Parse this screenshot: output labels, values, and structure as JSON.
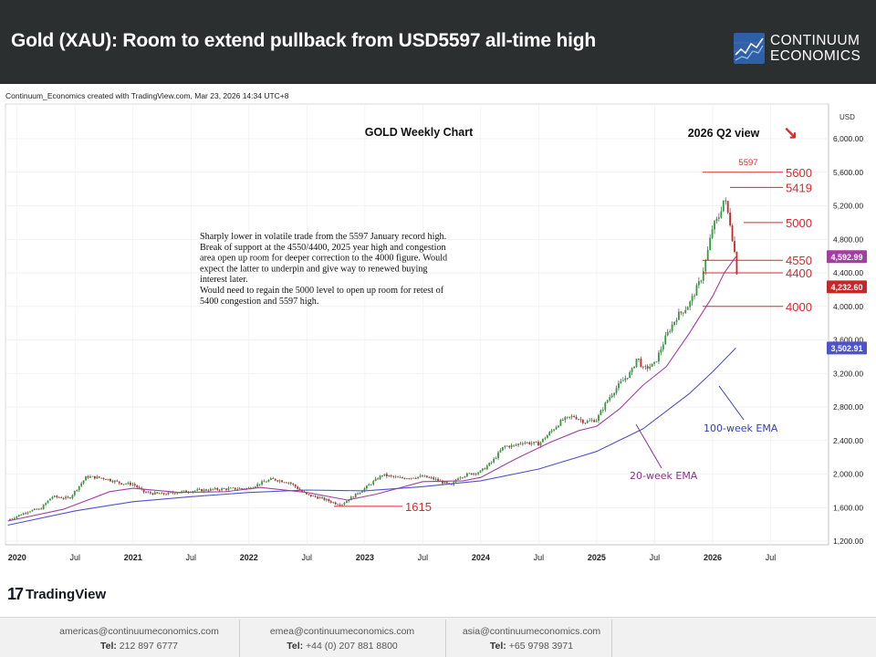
{
  "header": {
    "title": "Gold (XAU): Room to extend pullback from USD5597 all-time high",
    "logo_line1": "CONTINUUM",
    "logo_line2": "ECONOMICS"
  },
  "credit": "Continuum_Economics created with TradingView.com, Mar 23, 2026 14:34 UTC+8",
  "chart_data": {
    "type": "line",
    "title": "GOLD Weekly Chart",
    "subtitle": "2026 Q2 view",
    "currency": "USD",
    "ylim": [
      1200,
      6400
    ],
    "y_ticks": [
      "6,000.00",
      "5,600.00",
      "5,200.00",
      "4,800.00",
      "4,400.00",
      "4,000.00",
      "3,600.00",
      "3,200.00",
      "2,800.00",
      "2,400.00",
      "2,000.00",
      "1,600.00",
      "1,200.00"
    ],
    "x_ticks": [
      "2020",
      "Jul",
      "2021",
      "Jul",
      "2022",
      "Jul",
      "2023",
      "Jul",
      "2024",
      "Jul",
      "2025",
      "Jul",
      "2026",
      "Jul"
    ],
    "x_tick_pos": [
      0,
      0.5,
      1,
      1.5,
      2,
      2.5,
      3,
      3.5,
      4,
      4.5,
      5,
      5.5,
      6,
      6.5
    ],
    "x_range": [
      -0.1,
      7.0
    ],
    "price_series": {
      "name": "XAU weekly close (approx.)",
      "x": [
        -0.08,
        0.1,
        0.2,
        0.3,
        0.45,
        0.6,
        0.75,
        0.9,
        1.0,
        1.1,
        1.25,
        1.5,
        1.75,
        2.0,
        2.1,
        2.2,
        2.35,
        2.5,
        2.6,
        2.75,
        2.8,
        3.0,
        3.15,
        3.3,
        3.5,
        3.6,
        3.75,
        3.8,
        3.9,
        4.0,
        4.1,
        4.2,
        4.3,
        4.35,
        4.5,
        4.6,
        4.7,
        4.8,
        4.9,
        5.0,
        5.1,
        5.2,
        5.3,
        5.35,
        5.4,
        5.5,
        5.6,
        5.7,
        5.75,
        5.8,
        5.9,
        5.95,
        6.0,
        6.05,
        6.1,
        6.15,
        6.2,
        6.22
      ],
      "y": [
        1450,
        1560,
        1580,
        1730,
        1710,
        1970,
        1950,
        1890,
        1880,
        1780,
        1760,
        1800,
        1820,
        1830,
        1890,
        1940,
        1900,
        1750,
        1720,
        1650,
        1640,
        1830,
        1990,
        1950,
        1970,
        1940,
        1860,
        1960,
        2000,
        2030,
        2150,
        2330,
        2340,
        2380,
        2360,
        2500,
        2640,
        2690,
        2620,
        2650,
        2900,
        3080,
        3220,
        3400,
        3250,
        3310,
        3650,
        3900,
        3950,
        4030,
        4330,
        4600,
        4950,
        5050,
        5300,
        5000,
        4550,
        4232
      ]
    },
    "series": [
      {
        "name": "20-week EMA",
        "color": "#a33ea3",
        "last_value": "4,592.99",
        "x": [
          -0.08,
          0.4,
          0.8,
          1.0,
          1.4,
          1.8,
          2.1,
          2.5,
          2.85,
          3.1,
          3.5,
          3.85,
          4.0,
          4.3,
          4.6,
          4.85,
          5.0,
          5.2,
          5.4,
          5.6,
          5.8,
          6.0,
          6.1,
          6.2
        ],
        "y": [
          1440,
          1580,
          1790,
          1830,
          1780,
          1790,
          1840,
          1780,
          1690,
          1760,
          1910,
          1920,
          1960,
          2180,
          2380,
          2520,
          2570,
          2780,
          3060,
          3280,
          3680,
          4120,
          4400,
          4593
        ]
      },
      {
        "name": "100-week EMA",
        "color": "#4e53c9",
        "last_value": "3,502.91",
        "x": [
          -0.08,
          0.5,
          1.0,
          1.5,
          2.0,
          2.5,
          3.0,
          3.5,
          4.0,
          4.5,
          5.0,
          5.4,
          5.8,
          6.0,
          6.2
        ],
        "y": [
          1390,
          1560,
          1670,
          1730,
          1780,
          1810,
          1800,
          1850,
          1920,
          2060,
          2270,
          2540,
          2960,
          3220,
          3503
        ]
      }
    ],
    "last_price": "4,232.60",
    "levels": [
      {
        "label": "5600",
        "value": 5600
      },
      {
        "label": "5419",
        "value": 5419
      },
      {
        "label": "5000",
        "value": 5000
      },
      {
        "label": "4550",
        "value": 4550
      },
      {
        "label": "4400",
        "value": 4400
      },
      {
        "label": "4000",
        "value": 4000
      },
      {
        "label": "1615",
        "value": 1615
      }
    ],
    "high_label": "5597",
    "high_value": 5597,
    "annotation": "Sharply lower in volatile trade from the 5597 January record high. Break of support at the 4550/4400, 2025 year high and congestion area open up room for deeper correction to the 4000 figure. Would expect the latter to underpin and give way to renewed buying interest later.\nWould need to regain the 5000 level to open up room for retest of 5400 congestion and 5597 high.",
    "ema20_label": "20-week EMA",
    "ema100_label": "100-week EMA",
    "arrow_glyph": "↘"
  },
  "tradingview": {
    "mark": "17",
    "text": "TradingView"
  },
  "footer": [
    {
      "email": "americas@continuumeconomics.com",
      "tel_label": "Tel:",
      "tel": "212 897 6777"
    },
    {
      "email": "emea@continuumeconomics.com",
      "tel_label": "Tel:",
      "tel": "+44 (0) 207 881 8800"
    },
    {
      "email": "asia@continuumeconomics.com",
      "tel_label": "Tel:",
      "tel": "+65 9798 3971"
    }
  ],
  "colors": {
    "header_bg": "#2b2f2f",
    "level_red": "#d8292f",
    "up_candle": "#2f9d3a",
    "down_candle": "#c62828",
    "ema20": "#a33ea3",
    "ema100": "#4e53c9"
  }
}
